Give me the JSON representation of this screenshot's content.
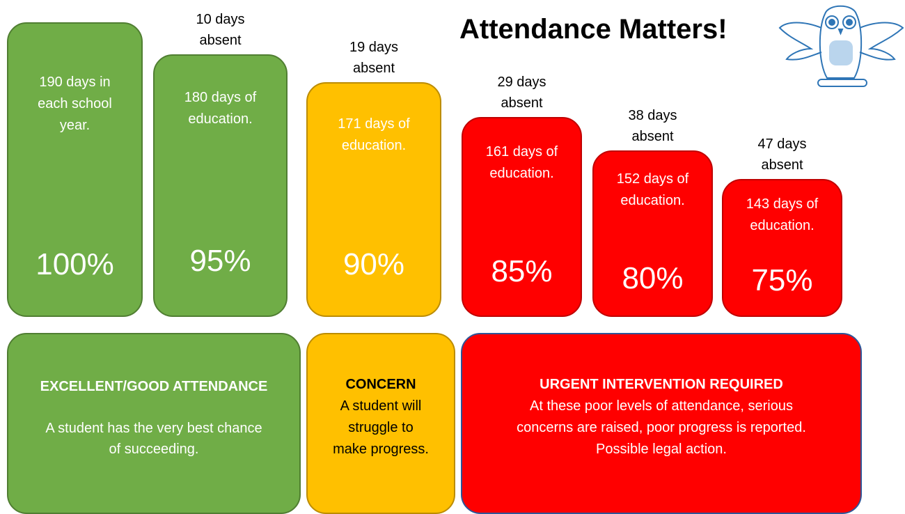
{
  "title": "Attendance Matters!",
  "columns": [
    {
      "absent": [],
      "description": [
        "190 days in",
        "each school",
        "year."
      ],
      "percent": "100%"
    },
    {
      "absent": [
        "10 days",
        "absent"
      ],
      "description": [
        "180 days of",
        "education."
      ],
      "percent": "95%"
    },
    {
      "absent": [
        "19 days",
        "absent"
      ],
      "description": [
        "171 days of",
        "education."
      ],
      "percent": "90%"
    },
    {
      "absent": [
        "29 days",
        "absent"
      ],
      "description": [
        "161 days of",
        "education."
      ],
      "percent": "85%"
    },
    {
      "absent": [
        "38 days",
        "absent"
      ],
      "description": [
        "152 days of",
        "education."
      ],
      "percent": "80%"
    },
    {
      "absent": [
        "47 days",
        "absent"
      ],
      "description": [
        "143 days of",
        "education."
      ],
      "percent": "75%"
    }
  ],
  "panels": [
    {
      "heading": "EXCELLENT/GOOD ATTENDANCE",
      "lines": [
        "A student has the very best chance",
        "of succeeding."
      ]
    },
    {
      "heading": "CONCERN",
      "lines": [
        "A student will",
        "struggle to",
        "make progress."
      ]
    },
    {
      "heading": "URGENT INTERVENTION REQUIRED",
      "lines": [
        "At these poor levels of attendance, serious",
        "concerns are raised, poor progress is reported.",
        "Possible legal action."
      ]
    }
  ]
}
